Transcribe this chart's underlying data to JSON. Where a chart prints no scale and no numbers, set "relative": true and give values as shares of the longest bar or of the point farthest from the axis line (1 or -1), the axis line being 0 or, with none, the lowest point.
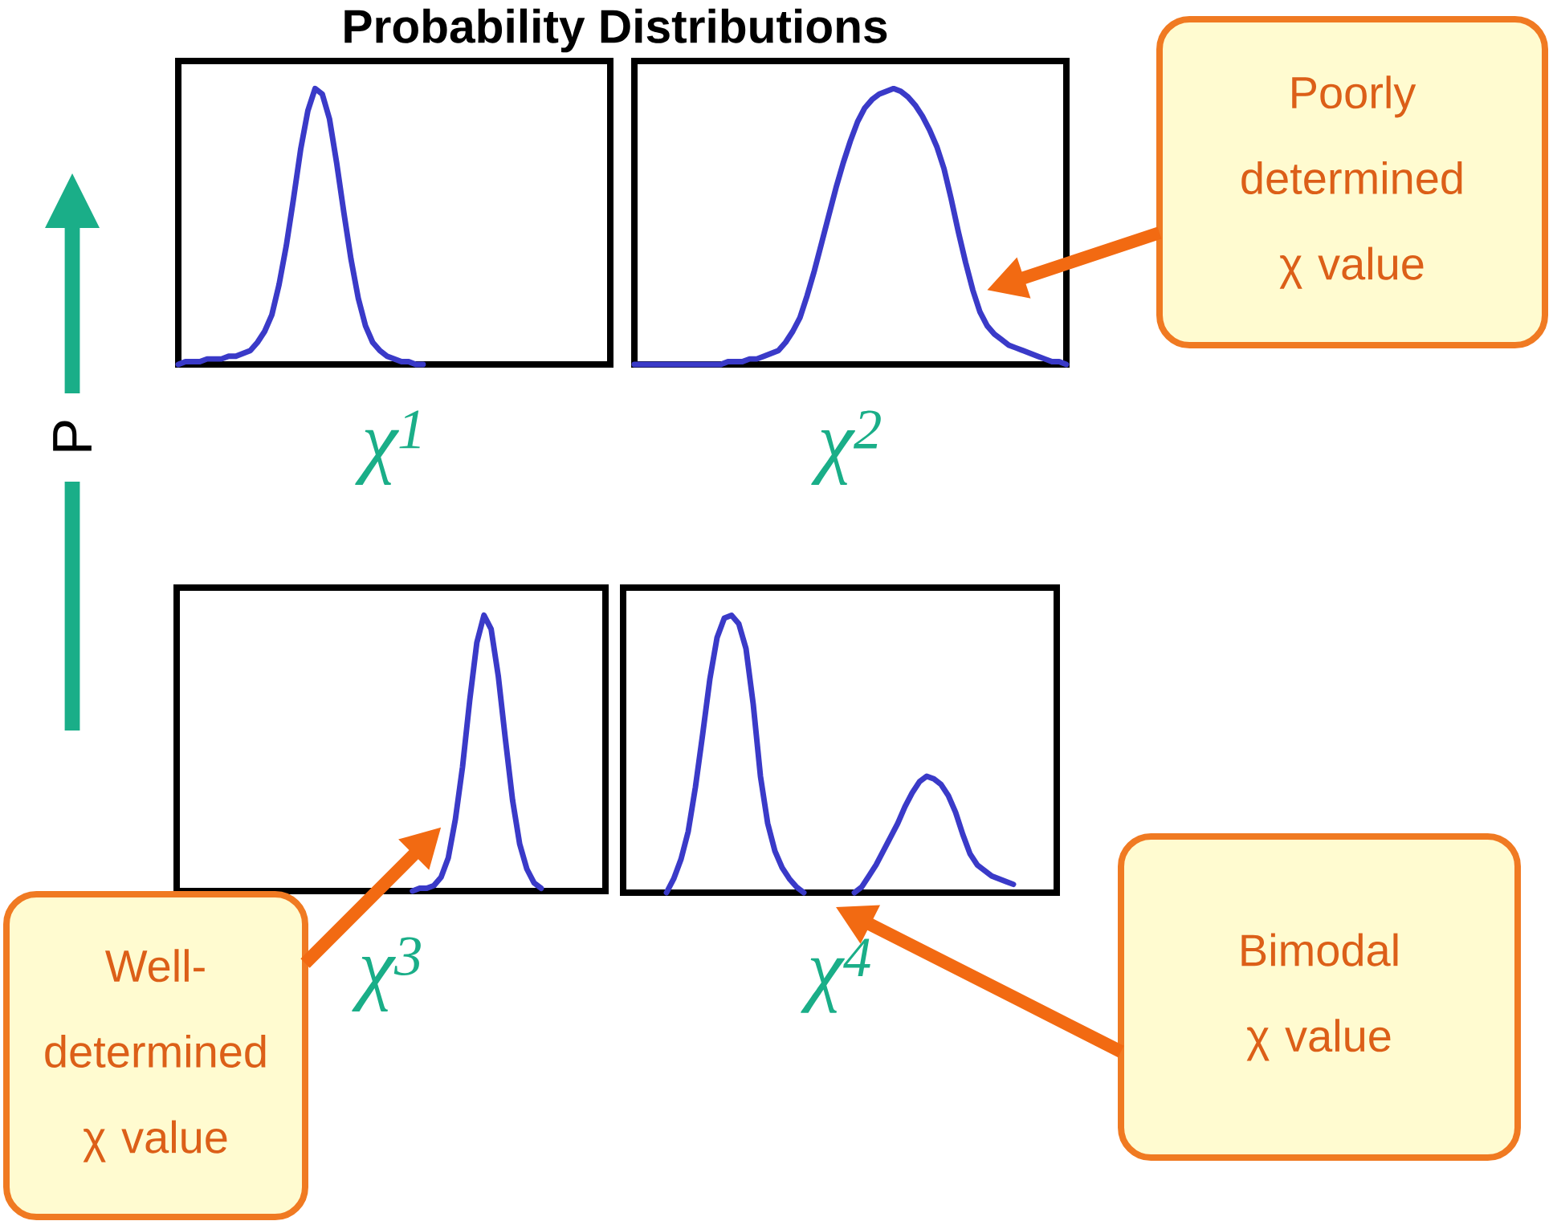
{
  "chart_data": [
    {
      "type": "line",
      "relative": true,
      "title": "Probability Distributions",
      "ylabel": "P",
      "xlabel": "χ$^{1}$",
      "color": "#3a3ac8",
      "categories": [
        null,
        null,
        null,
        null,
        null,
        null,
        null,
        null,
        null,
        null,
        null,
        null,
        null,
        null,
        null,
        null,
        null,
        null,
        null,
        null,
        null,
        null,
        null,
        null,
        null,
        null,
        null,
        null,
        null,
        null,
        null,
        null,
        null,
        null,
        null,
        null,
        null,
        null,
        null,
        null,
        null,
        null,
        null,
        null,
        null,
        null,
        null,
        null,
        null,
        null,
        null,
        null,
        null,
        null,
        null,
        null,
        null,
        null,
        null,
        null,
        null
      ],
      "values": [
        0,
        0.01,
        0.01,
        0.01,
        0.02,
        0.02,
        0.02,
        0.03,
        0.03,
        0.04,
        0.05,
        0.08,
        0.12,
        0.18,
        0.29,
        0.43,
        0.6,
        0.78,
        0.92,
        1,
        0.98,
        0.89,
        0.73,
        0.55,
        0.38,
        0.24,
        0.14,
        0.08,
        0.05,
        0.03,
        0.02,
        0.01,
        0.01,
        0,
        0,
        null,
        null,
        null,
        null,
        null,
        null,
        null,
        null,
        null,
        null,
        null,
        null,
        null,
        null,
        null,
        null,
        null,
        null,
        null,
        null,
        null,
        null,
        null,
        null,
        null,
        null
      ]
    },
    {
      "type": "line",
      "relative": true,
      "xlabel": "χ$^{2}$",
      "color": "#3a3ac8",
      "annotations": [
        "Poorly determined χ value"
      ],
      "categories": [
        null,
        null,
        null,
        null,
        null,
        null,
        null,
        null,
        null,
        null,
        null,
        null,
        null,
        null,
        null,
        null,
        null,
        null,
        null,
        null,
        null,
        null,
        null,
        null,
        null,
        null,
        null,
        null,
        null,
        null,
        null,
        null,
        null,
        null,
        null,
        null,
        null,
        null,
        null,
        null,
        null,
        null,
        null,
        null,
        null,
        null,
        null,
        null,
        null,
        null,
        null,
        null,
        null,
        null,
        null,
        null,
        null,
        null,
        null,
        null,
        null
      ],
      "values": [
        0,
        0,
        0,
        0,
        0,
        0,
        0,
        0,
        0,
        0,
        0,
        0,
        0,
        0.01,
        0.01,
        0.01,
        0.02,
        0.02,
        0.03,
        0.04,
        0.05,
        0.08,
        0.12,
        0.17,
        0.25,
        0.34,
        0.44,
        0.54,
        0.64,
        0.73,
        0.81,
        0.88,
        0.93,
        0.96,
        0.98,
        0.99,
        1,
        0.99,
        0.97,
        0.94,
        0.9,
        0.85,
        0.79,
        0.71,
        0.6,
        0.48,
        0.37,
        0.27,
        0.19,
        0.14,
        0.11,
        0.09,
        0.07,
        0.06,
        0.05,
        0.04,
        0.03,
        0.02,
        0.01,
        0.01,
        0
      ]
    },
    {
      "type": "line",
      "relative": true,
      "xlabel": "χ$^{3}$",
      "color": "#3a3ac8",
      "annotations": [
        "Well-determined χ value"
      ],
      "categories": [
        null,
        null,
        null,
        null,
        null,
        null,
        null,
        null,
        null,
        null,
        null,
        null,
        null,
        null,
        null,
        null,
        null,
        null,
        null,
        null,
        null,
        null,
        null,
        null,
        null,
        null,
        null,
        null,
        null,
        null,
        null,
        null,
        null,
        null,
        null,
        null,
        null,
        null,
        null,
        null,
        null,
        null,
        null,
        null,
        null,
        null,
        null,
        null,
        null,
        null,
        null,
        null,
        null,
        null,
        null,
        null,
        null,
        null,
        null,
        null,
        null
      ],
      "values": [
        null,
        null,
        null,
        null,
        null,
        null,
        null,
        null,
        null,
        null,
        null,
        null,
        null,
        null,
        null,
        null,
        null,
        null,
        null,
        null,
        null,
        null,
        null,
        null,
        null,
        null,
        null,
        null,
        null,
        null,
        null,
        null,
        null,
        0,
        0.01,
        0.01,
        0.02,
        0.05,
        0.12,
        0.26,
        0.45,
        0.69,
        0.9,
        1,
        0.95,
        0.78,
        0.55,
        0.33,
        0.17,
        0.08,
        0.03,
        0.01,
        null,
        null,
        null,
        null,
        null,
        null,
        null,
        null,
        null
      ]
    },
    {
      "type": "line",
      "relative": true,
      "xlabel": "χ$^{4}$",
      "annotations": [
        "Bimodal χ value"
      ],
      "categories": [
        null,
        null,
        null,
        null,
        null,
        null,
        null,
        null,
        null,
        null,
        null,
        null,
        null,
        null,
        null,
        null,
        null,
        null,
        null,
        null,
        null,
        null,
        null,
        null,
        null,
        null,
        null,
        null,
        null,
        null,
        null,
        null,
        null,
        null,
        null,
        null,
        null,
        null,
        null,
        null,
        null,
        null,
        null,
        null,
        null,
        null,
        null,
        null,
        null,
        null,
        null,
        null,
        null,
        null,
        null,
        null,
        null,
        null,
        null,
        null,
        null
      ],
      "series": [
        {
          "color": "#3a3ac8",
          "values": [
            null,
            null,
            null,
            null,
            null,
            null,
            0,
            0.05,
            0.12,
            0.22,
            0.38,
            0.57,
            0.77,
            0.92,
            0.99,
            1,
            0.97,
            0.88,
            0.68,
            0.42,
            0.25,
            0.15,
            0.09,
            0.05,
            0.02,
            0,
            null,
            null,
            null,
            null,
            null,
            null,
            null,
            null,
            null,
            null,
            null,
            null,
            null,
            null,
            null,
            null,
            null,
            null,
            null,
            null,
            null,
            null,
            null,
            null,
            null,
            null,
            null,
            null,
            null,
            null,
            null,
            null,
            null,
            null,
            null
          ]
        },
        {
          "color": "#3a3ac8",
          "values": [
            null,
            null,
            null,
            null,
            null,
            null,
            null,
            null,
            null,
            null,
            null,
            null,
            null,
            null,
            null,
            null,
            null,
            null,
            null,
            null,
            null,
            null,
            null,
            null,
            null,
            null,
            null,
            null,
            null,
            null,
            null,
            null,
            0,
            0.02,
            0.06,
            0.1,
            0.15,
            0.2,
            0.25,
            0.31,
            0.36,
            0.4,
            0.42,
            0.41,
            0.39,
            0.35,
            0.29,
            0.21,
            0.14,
            0.1,
            0.08,
            0.06,
            0.05,
            0.04,
            0.03,
            null,
            null,
            null,
            null,
            null,
            null
          ]
        }
      ]
    }
  ]
}
